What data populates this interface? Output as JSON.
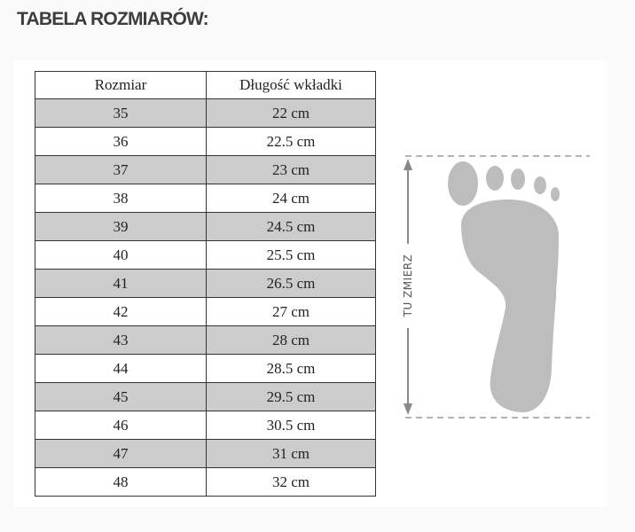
{
  "title": "TABELA ROZMIARÓW:",
  "table": {
    "headers": [
      "Rozmiar",
      "Długość wkładki"
    ],
    "rows": [
      [
        "35",
        "22 cm"
      ],
      [
        "36",
        "22.5 cm"
      ],
      [
        "37",
        "23 cm"
      ],
      [
        "38",
        "24 cm"
      ],
      [
        "39",
        "24.5 cm"
      ],
      [
        "40",
        "25.5 cm"
      ],
      [
        "41",
        "26.5 cm"
      ],
      [
        "42",
        "27 cm"
      ],
      [
        "43",
        "28 cm"
      ],
      [
        "44",
        "28.5 cm"
      ],
      [
        "45",
        "29.5 cm"
      ],
      [
        "46",
        "30.5 cm"
      ],
      [
        "47",
        "31 cm"
      ],
      [
        "48",
        "32 cm"
      ]
    ]
  },
  "diagram": {
    "measure_label": "TU ZMIERZ",
    "icon": "foot-icon"
  },
  "colors": {
    "shade": "#cccccc",
    "foot": "#bdbdbd"
  }
}
